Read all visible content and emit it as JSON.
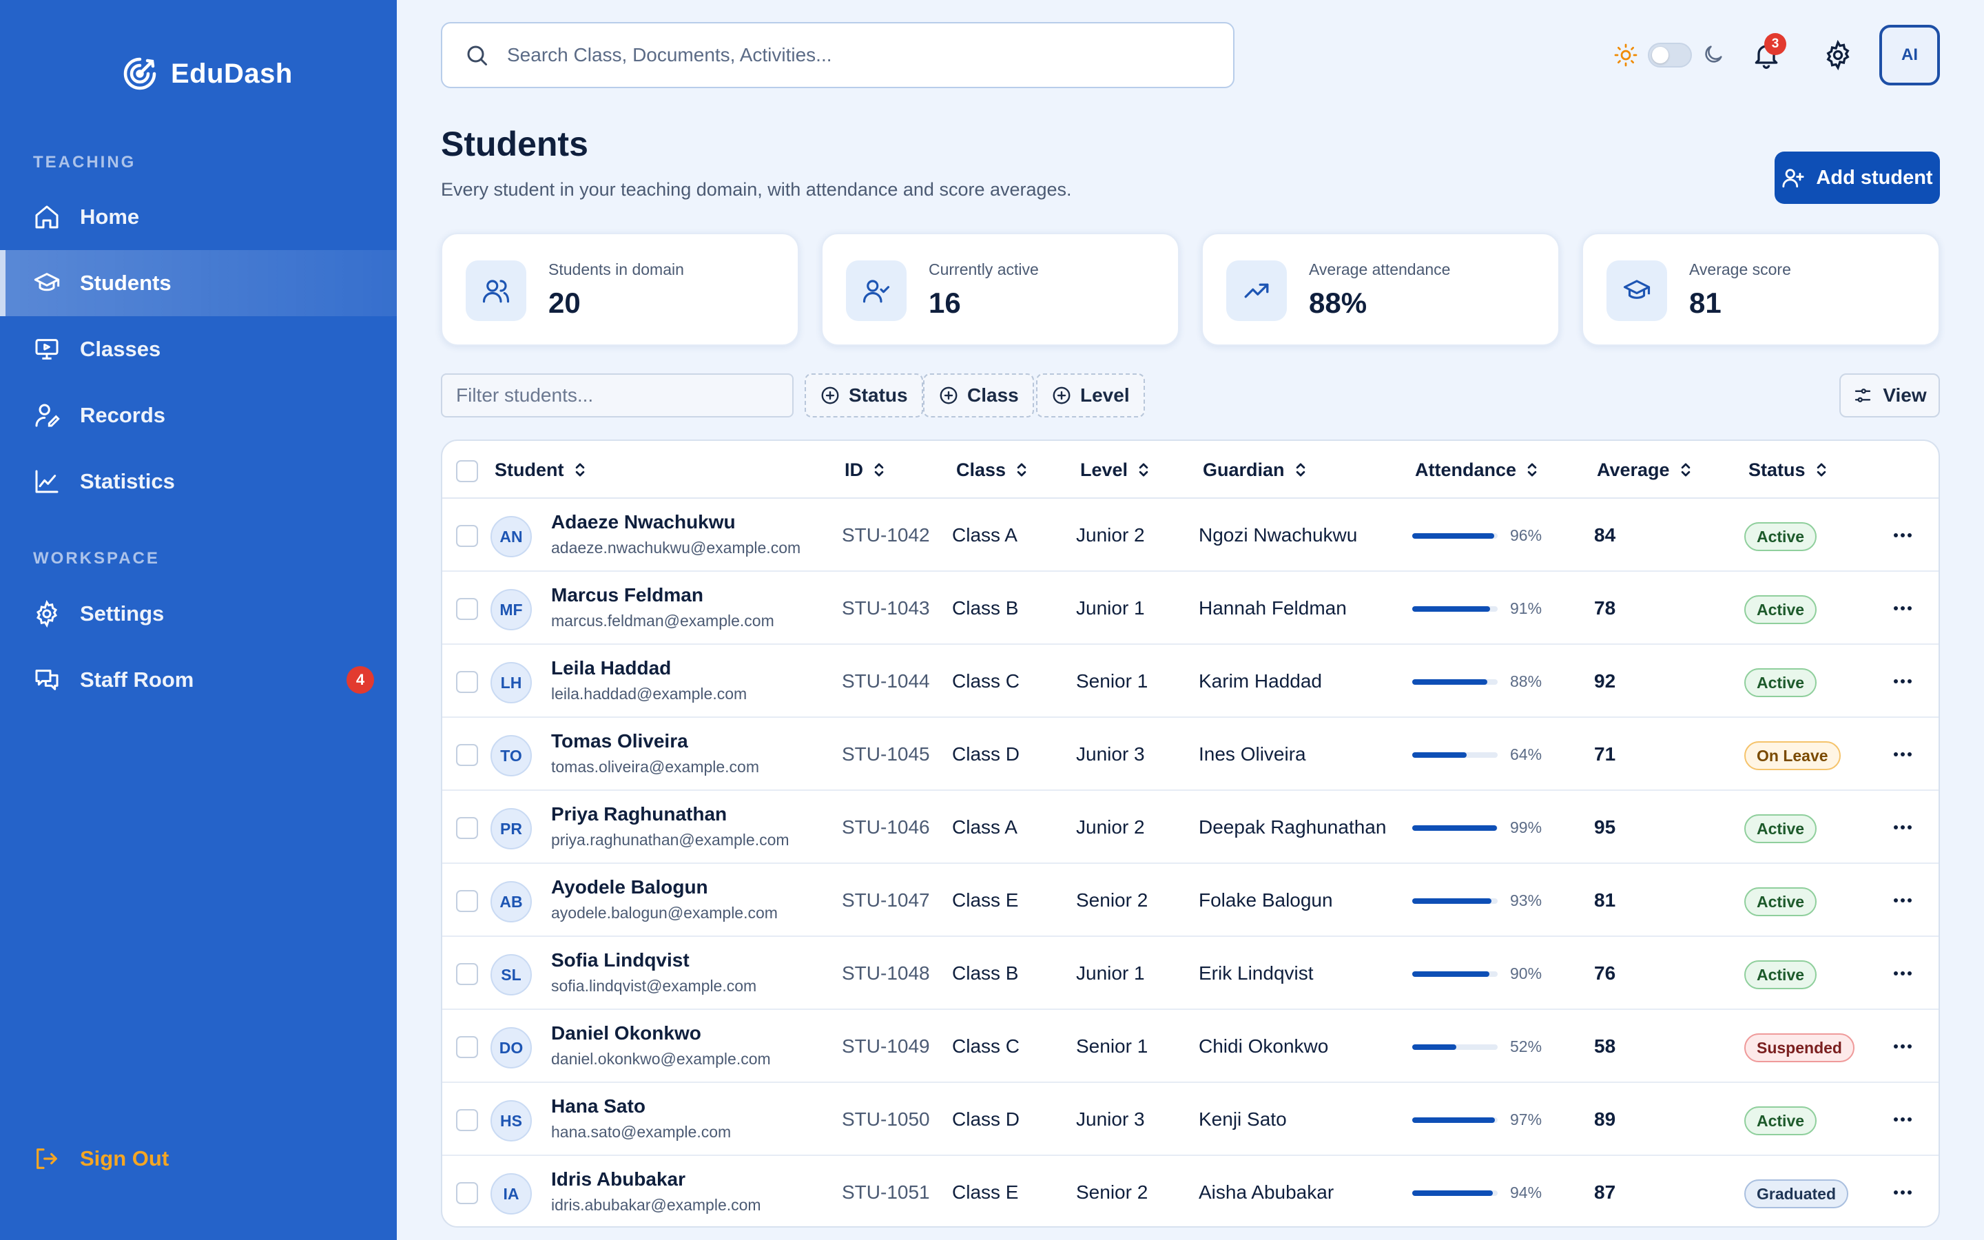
{
  "app": {
    "name": "EduDash"
  },
  "sidebar": {
    "sections": [
      {
        "label": "TEACHING"
      },
      {
        "label": "WORKSPACE"
      }
    ],
    "items": [
      {
        "label": "Home",
        "icon": "home-icon"
      },
      {
        "label": "Students",
        "icon": "graduation-cap-icon",
        "active": true
      },
      {
        "label": "Classes",
        "icon": "presentation-icon"
      },
      {
        "label": "Records",
        "icon": "user-record-icon"
      },
      {
        "label": "Statistics",
        "icon": "line-chart-icon"
      },
      {
        "label": "Settings",
        "icon": "gear-icon"
      },
      {
        "label": "Staff Room",
        "icon": "chat-icon",
        "badge": "4"
      }
    ],
    "sign_out": "Sign Out"
  },
  "topbar": {
    "search_placeholder": "Search Class, Documents, Activities...",
    "notifications_count": "3",
    "avatar_initials": "AI",
    "theme": "light"
  },
  "page": {
    "title": "Students",
    "subtitle": "Every student in your teaching domain, with attendance and score averages.",
    "add_button": "Add student"
  },
  "stats": [
    {
      "label": "Students in domain",
      "value": "20",
      "icon": "users-icon"
    },
    {
      "label": "Currently active",
      "value": "16",
      "icon": "user-check-icon"
    },
    {
      "label": "Average attendance",
      "value": "88%",
      "icon": "trending-up-icon"
    },
    {
      "label": "Average score",
      "value": "81",
      "icon": "graduation-cap-icon"
    }
  ],
  "filters": {
    "placeholder": "Filter students...",
    "chips": [
      "Status",
      "Class",
      "Level"
    ],
    "view_label": "View"
  },
  "table": {
    "columns": [
      "Student",
      "ID",
      "Class",
      "Level",
      "Guardian",
      "Attendance",
      "Average",
      "Status"
    ],
    "rows": [
      {
        "initials": "AN",
        "name": "Adaeze Nwachukwu",
        "email": "adaeze.nwachukwu@example.com",
        "id": "STU-1042",
        "class": "Class A",
        "level": "Junior 2",
        "guardian": "Ngozi Nwachukwu",
        "attendance": 96,
        "attendance_label": "96%",
        "average": "84",
        "status": "Active"
      },
      {
        "initials": "MF",
        "name": "Marcus Feldman",
        "email": "marcus.feldman@example.com",
        "id": "STU-1043",
        "class": "Class B",
        "level": "Junior 1",
        "guardian": "Hannah Feldman",
        "attendance": 91,
        "attendance_label": "91%",
        "average": "78",
        "status": "Active"
      },
      {
        "initials": "LH",
        "name": "Leila Haddad",
        "email": "leila.haddad@example.com",
        "id": "STU-1044",
        "class": "Class C",
        "level": "Senior 1",
        "guardian": "Karim Haddad",
        "attendance": 88,
        "attendance_label": "88%",
        "average": "92",
        "status": "Active"
      },
      {
        "initials": "TO",
        "name": "Tomas Oliveira",
        "email": "tomas.oliveira@example.com",
        "id": "STU-1045",
        "class": "Class D",
        "level": "Junior 3",
        "guardian": "Ines Oliveira",
        "attendance": 64,
        "attendance_label": "64%",
        "average": "71",
        "status": "On Leave"
      },
      {
        "initials": "PR",
        "name": "Priya Raghunathan",
        "email": "priya.raghunathan@example.com",
        "id": "STU-1046",
        "class": "Class A",
        "level": "Junior 2",
        "guardian": "Deepak Raghunathan",
        "attendance": 99,
        "attendance_label": "99%",
        "average": "95",
        "status": "Active"
      },
      {
        "initials": "AB",
        "name": "Ayodele Balogun",
        "email": "ayodele.balogun@example.com",
        "id": "STU-1047",
        "class": "Class E",
        "level": "Senior 2",
        "guardian": "Folake Balogun",
        "attendance": 93,
        "attendance_label": "93%",
        "average": "81",
        "status": "Active"
      },
      {
        "initials": "SL",
        "name": "Sofia Lindqvist",
        "email": "sofia.lindqvist@example.com",
        "id": "STU-1048",
        "class": "Class B",
        "level": "Junior 1",
        "guardian": "Erik Lindqvist",
        "attendance": 90,
        "attendance_label": "90%",
        "average": "76",
        "status": "Active"
      },
      {
        "initials": "DO",
        "name": "Daniel Okonkwo",
        "email": "daniel.okonkwo@example.com",
        "id": "STU-1049",
        "class": "Class C",
        "level": "Senior 1",
        "guardian": "Chidi Okonkwo",
        "attendance": 52,
        "attendance_label": "52%",
        "average": "58",
        "status": "Suspended"
      },
      {
        "initials": "HS",
        "name": "Hana Sato",
        "email": "hana.sato@example.com",
        "id": "STU-1050",
        "class": "Class D",
        "level": "Junior 3",
        "guardian": "Kenji Sato",
        "attendance": 97,
        "attendance_label": "97%",
        "average": "89",
        "status": "Active"
      },
      {
        "initials": "IA",
        "name": "Idris Abubakar",
        "email": "idris.abubakar@example.com",
        "id": "STU-1051",
        "class": "Class E",
        "level": "Senior 2",
        "guardian": "Aisha Abubakar",
        "attendance": 94,
        "attendance_label": "94%",
        "average": "87",
        "status": "Graduated"
      }
    ]
  },
  "colors": {
    "sidebar": "#2563c9",
    "primary": "#0e4fb6",
    "background": "#eef4fd",
    "sign_out": "#f5a623",
    "status_active": "#e7f6ea",
    "status_on_leave": "#fff4e2",
    "status_suspended": "#fde8e8",
    "status_graduated": "#e4ecf8"
  }
}
